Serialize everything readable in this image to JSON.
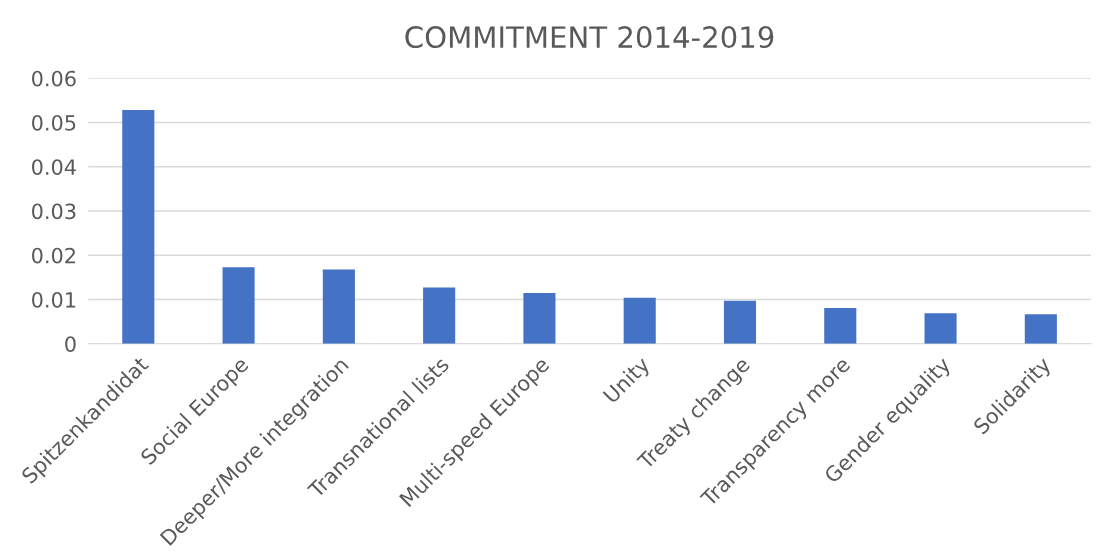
{
  "chart_data": {
    "type": "bar",
    "title": "COMMITMENT 2014-2019",
    "categories": [
      "Spitzenkandidat",
      "Social Europe",
      "Deeper/More integration",
      "Transnational lists",
      "Multi-speed Europe",
      "Unity",
      "Treaty change",
      "Transparency more",
      "Gender equality",
      "Solidarity"
    ],
    "values": [
      0.0528,
      0.0173,
      0.0168,
      0.0127,
      0.0115,
      0.0104,
      0.0097,
      0.0081,
      0.0069,
      0.0067
    ],
    "color": "#4472c4",
    "ylim": [
      0,
      0.06
    ],
    "yticks": [
      0,
      0.01,
      0.02,
      0.03,
      0.04,
      0.05,
      0.06
    ],
    "grid": "y"
  }
}
